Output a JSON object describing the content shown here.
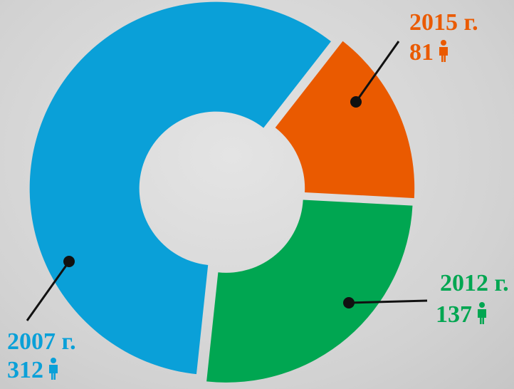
{
  "chart_data": {
    "type": "donut",
    "categories": [
      "2007 г.",
      "2012 г.",
      "2015 г."
    ],
    "values": [
      312,
      137,
      81
    ],
    "colors": [
      "#0aa0d8",
      "#00a651",
      "#ea5a00"
    ]
  }
}
